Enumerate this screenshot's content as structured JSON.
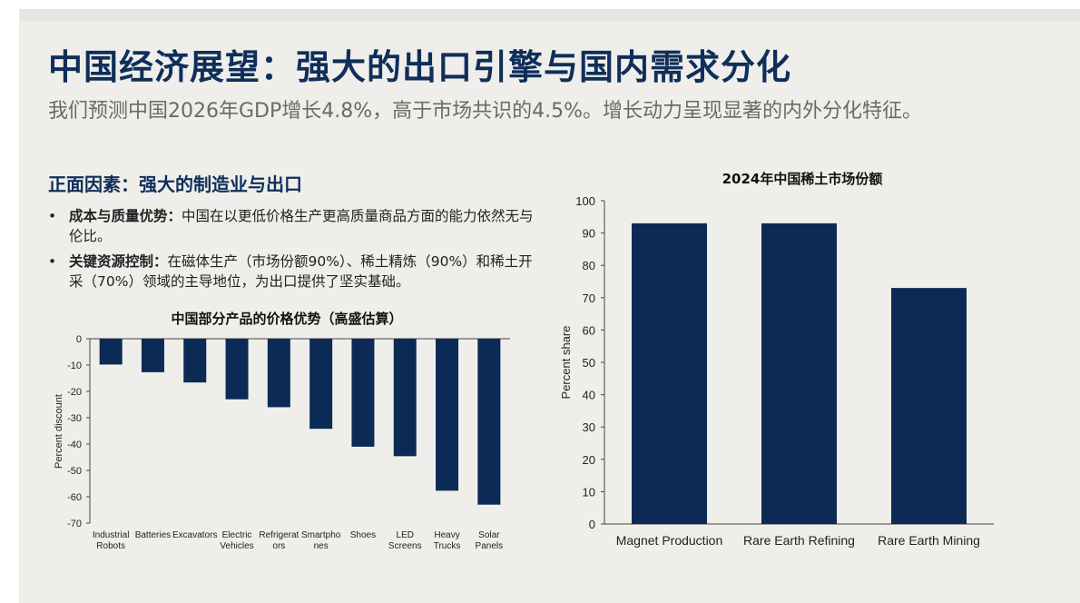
{
  "header": {
    "title": "中国经济展望：强大的出口引擎与国内需求分化",
    "subtitle": "我们预测中国2026年GDP增长4.8%，高于市场共识的4.5%。增长动力呈现显著的内外分化特征。"
  },
  "section": {
    "heading": "正面因素：强大的制造业与出口",
    "bullets": [
      {
        "bold": "成本与质量优势：",
        "text": "中国在以更低价格生产更高质量商品方面的能力依然无与伦比。"
      },
      {
        "bold": "关键资源控制：",
        "text": "在磁体生产（市场份额90%）、稀土精炼（90%）和稀土开采（70%）领域的主导地位，为出口提供了坚实基础。"
      }
    ],
    "bullet_symbol": "•"
  },
  "colors": {
    "bar": "#0b2a55",
    "title": "#0f2e5a"
  },
  "chart_data": [
    {
      "type": "bar",
      "title": "中国部分产品的价格优势（高盛估算）",
      "ylabel": "Percent discount",
      "xlabel": "",
      "ylim": [
        -70,
        0
      ],
      "yticks": [
        "0",
        "-10",
        "-20",
        "-30",
        "-40",
        "-50",
        "-60",
        "-70"
      ],
      "categories": [
        [
          "Industrial",
          "Robots"
        ],
        [
          "Batteries"
        ],
        [
          "Excavators"
        ],
        [
          "Electric",
          "Vehicles"
        ],
        [
          "Refrigerat",
          "ors"
        ],
        [
          "Smartpho",
          "nes"
        ],
        [
          "Shoes"
        ],
        [
          "LED",
          "Screens"
        ],
        [
          "Heavy",
          "Trucks"
        ],
        [
          "Solar",
          "Panels"
        ]
      ],
      "values": [
        -9.8,
        -12.7,
        -16.6,
        -23,
        -26,
        -34.2,
        -41,
        -44.6,
        -57.7,
        -63
      ],
      "grid": false
    },
    {
      "type": "bar",
      "title": "2024年中国稀土市场份额",
      "ylabel": "Percent share",
      "xlabel": "",
      "ylim": [
        0,
        100
      ],
      "yticks": [
        "0",
        "10",
        "20",
        "30",
        "40",
        "50",
        "60",
        "70",
        "80",
        "90",
        "100"
      ],
      "categories": [
        "Magnet Production",
        "Rare Earth Refining",
        "Rare Earth Mining"
      ],
      "values": [
        93,
        93,
        73
      ],
      "grid": false
    }
  ]
}
